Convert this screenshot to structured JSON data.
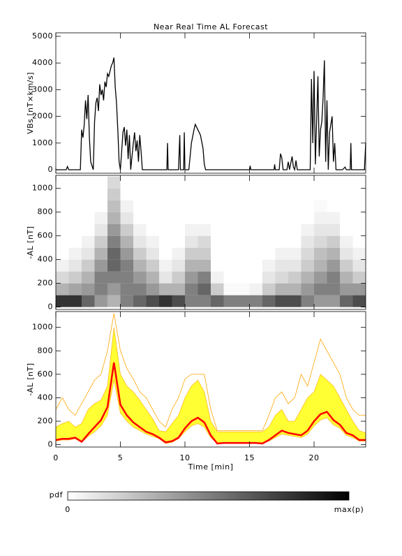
{
  "chart_data": [
    {
      "type": "line",
      "title": "Near Real Time AL Forecast",
      "ylabel": "VBs [nT×km/s]",
      "color": "#000000",
      "xlim": [
        0,
        24
      ],
      "ylim": [
        -130,
        5130
      ],
      "yticks": [
        0,
        1000,
        2000,
        3000,
        4000,
        5000
      ],
      "x": [
        0,
        0.8,
        0.9,
        1.0,
        1.9,
        2.0,
        2.1,
        2.2,
        2.3,
        2.4,
        2.5,
        2.6,
        2.7,
        2.9,
        3.0,
        3.1,
        3.2,
        3.3,
        3.4,
        3.5,
        3.6,
        3.7,
        3.8,
        3.9,
        4.0,
        4.1,
        4.2,
        4.3,
        4.4,
        4.5,
        4.6,
        4.7,
        4.8,
        4.9,
        5.0,
        5.2,
        5.3,
        5.4,
        5.5,
        5.6,
        5.7,
        5.8,
        6.0,
        6.1,
        6.2,
        6.3,
        6.4,
        6.5,
        6.6,
        6.7,
        8.6,
        8.65,
        8.7,
        9.5,
        9.6,
        9.65,
        9.9,
        9.95,
        10.0,
        10.3,
        10.5,
        10.7,
        10.8,
        11.0,
        11.2,
        11.4,
        11.5,
        11.6,
        15.0,
        15.05,
        15.1,
        16.9,
        16.95,
        17.0,
        17.3,
        17.4,
        17.5,
        17.6,
        17.9,
        18.0,
        18.1,
        18.3,
        18.4,
        18.5,
        18.6,
        18.7,
        19.7,
        19.8,
        19.9,
        20.0,
        20.1,
        20.3,
        20.4,
        20.5,
        20.6,
        20.7,
        20.8,
        20.9,
        21.0,
        21.1,
        21.2,
        21.4,
        21.5,
        21.6,
        21.7,
        22.2,
        22.4,
        22.5,
        22.8,
        22.85,
        22.9,
        23.9,
        24.0
      ],
      "values": [
        0,
        0,
        120,
        0,
        0,
        1500,
        1200,
        1700,
        2600,
        1900,
        2800,
        1200,
        300,
        0,
        1800,
        2500,
        2700,
        2200,
        3200,
        2800,
        3000,
        2600,
        3300,
        3100,
        3600,
        3500,
        3700,
        3900,
        4000,
        4200,
        3100,
        2500,
        1500,
        300,
        0,
        1400,
        1600,
        900,
        1500,
        400,
        1300,
        0,
        1000,
        1400,
        700,
        1100,
        300,
        1300,
        700,
        0,
        0,
        1000,
        0,
        0,
        1300,
        0,
        0,
        1400,
        0,
        0,
        1000,
        1500,
        1700,
        1500,
        1300,
        800,
        200,
        0,
        0,
        150,
        0,
        0,
        200,
        0,
        0,
        600,
        450,
        0,
        0,
        300,
        0,
        500,
        100,
        0,
        350,
        0,
        0,
        3400,
        1000,
        3700,
        200,
        3500,
        500,
        1500,
        1800,
        2700,
        4100,
        300,
        2600,
        0,
        1400,
        2000,
        300,
        1000,
        0,
        0,
        100,
        0,
        0,
        1000,
        0,
        0,
        1000
      ]
    },
    {
      "type": "heatmap",
      "ylabel": "-AL [nT]",
      "xlim": [
        0,
        24
      ],
      "ylim": [
        -20,
        1110
      ],
      "yticks": [
        0,
        200,
        400,
        600,
        800,
        1000
      ],
      "xbins": [
        0,
        1,
        2,
        3,
        4,
        5,
        6,
        7,
        8,
        9,
        10,
        11,
        12,
        13,
        14,
        15,
        16,
        17,
        18,
        19,
        20,
        21,
        22,
        23,
        24
      ],
      "ybins": [
        0,
        100,
        200,
        300,
        400,
        500,
        600,
        700,
        800,
        900,
        1000,
        1100
      ],
      "z": [
        [
          0.8,
          0.3,
          0.15,
          0.05,
          0,
          0,
          0,
          0,
          0,
          0,
          0
        ],
        [
          0.8,
          0.35,
          0.2,
          0.1,
          0.05,
          0,
          0,
          0,
          0,
          0,
          0
        ],
        [
          0.6,
          0.4,
          0.3,
          0.2,
          0.1,
          0.05,
          0,
          0,
          0,
          0,
          0
        ],
        [
          0.4,
          0.5,
          0.5,
          0.4,
          0.3,
          0.2,
          0.1,
          0.05,
          0,
          0,
          0
        ],
        [
          0.3,
          0.4,
          0.5,
          0.6,
          0.6,
          0.5,
          0.4,
          0.3,
          0.25,
          0.2,
          0.15
        ],
        [
          0.5,
          0.5,
          0.5,
          0.5,
          0.4,
          0.3,
          0.2,
          0.1,
          0.05,
          0,
          0
        ],
        [
          0.6,
          0.5,
          0.4,
          0.3,
          0.2,
          0.1,
          0.05,
          0,
          0,
          0,
          0
        ],
        [
          0.7,
          0.4,
          0.3,
          0.2,
          0.1,
          0.05,
          0,
          0,
          0,
          0,
          0
        ],
        [
          0.8,
          0.3,
          0.1,
          0.05,
          0,
          0,
          0,
          0,
          0,
          0,
          0
        ],
        [
          0.7,
          0.3,
          0.2,
          0.1,
          0.05,
          0,
          0,
          0,
          0,
          0,
          0
        ],
        [
          0.5,
          0.5,
          0.4,
          0.3,
          0.2,
          0.1,
          0.05,
          0,
          0,
          0,
          0
        ],
        [
          0.5,
          0.6,
          0.5,
          0.3,
          0.2,
          0.15,
          0.05,
          0,
          0,
          0,
          0
        ],
        [
          0.6,
          0.2,
          0.05,
          0,
          0,
          0,
          0,
          0,
          0,
          0,
          0
        ],
        [
          0.5,
          0.02,
          0,
          0,
          0,
          0,
          0,
          0,
          0,
          0,
          0
        ],
        [
          0.5,
          0.02,
          0,
          0,
          0,
          0,
          0,
          0,
          0,
          0,
          0
        ],
        [
          0.5,
          0.05,
          0,
          0,
          0,
          0,
          0,
          0,
          0,
          0,
          0
        ],
        [
          0.6,
          0.2,
          0.1,
          0.05,
          0,
          0,
          0,
          0,
          0,
          0,
          0
        ],
        [
          0.7,
          0.3,
          0.15,
          0.1,
          0.05,
          0,
          0,
          0,
          0,
          0,
          0
        ],
        [
          0.7,
          0.3,
          0.2,
          0.1,
          0.05,
          0,
          0,
          0,
          0,
          0,
          0
        ],
        [
          0.5,
          0.4,
          0.3,
          0.2,
          0.15,
          0.1,
          0.05,
          0,
          0,
          0,
          0
        ],
        [
          0.4,
          0.5,
          0.4,
          0.3,
          0.25,
          0.15,
          0.1,
          0.05,
          0.02,
          0,
          0
        ],
        [
          0.4,
          0.5,
          0.5,
          0.4,
          0.3,
          0.2,
          0.1,
          0.05,
          0,
          0,
          0
        ],
        [
          0.6,
          0.4,
          0.3,
          0.2,
          0.1,
          0.05,
          0,
          0,
          0,
          0,
          0
        ],
        [
          0.7,
          0.4,
          0.2,
          0.1,
          0.05,
          0,
          0,
          0,
          0,
          0,
          0
        ]
      ]
    },
    {
      "type": "area",
      "ylabel": "-AL [nT]",
      "xlabel": "Time [min]",
      "xlim": [
        0,
        24
      ],
      "ylim": [
        -20,
        1135
      ],
      "xticks": [
        0,
        5,
        10,
        15,
        20
      ],
      "yticks": [
        0,
        200,
        400,
        600,
        800,
        1000
      ],
      "x": [
        0,
        0.5,
        1,
        1.5,
        2,
        2.5,
        3,
        3.5,
        4,
        4.5,
        5,
        5.5,
        6,
        6.5,
        7,
        7.5,
        8,
        8.5,
        9,
        9.5,
        10,
        10.5,
        11,
        11.5,
        12,
        12.5,
        13,
        13.5,
        14,
        14.5,
        15,
        15.5,
        16,
        16.5,
        17,
        17.5,
        18,
        18.5,
        19,
        19.5,
        20,
        20.5,
        21,
        21.5,
        22,
        22.5,
        23,
        23.5,
        24
      ],
      "band": {
        "color": "#ffff33",
        "lower": [
          30,
          40,
          40,
          50,
          20,
          70,
          110,
          160,
          250,
          550,
          270,
          200,
          150,
          120,
          90,
          70,
          50,
          10,
          20,
          50,
          110,
          160,
          180,
          150,
          60,
          10,
          10,
          10,
          10,
          10,
          10,
          10,
          10,
          30,
          60,
          90,
          80,
          70,
          60,
          90,
          160,
          210,
          230,
          170,
          140,
          80,
          60,
          30,
          30
        ],
        "upper": [
          150,
          180,
          200,
          150,
          180,
          300,
          350,
          380,
          500,
          1000,
          600,
          500,
          450,
          380,
          300,
          220,
          120,
          110,
          180,
          250,
          400,
          500,
          550,
          450,
          200,
          110,
          110,
          110,
          110,
          110,
          110,
          110,
          110,
          150,
          250,
          300,
          200,
          200,
          300,
          400,
          450,
          600,
          550,
          500,
          400,
          300,
          200,
          120,
          100
        ]
      },
      "envelope": {
        "color": "#ffa500",
        "values": [
          300,
          400,
          300,
          250,
          350,
          450,
          550,
          600,
          800,
          1120,
          800,
          650,
          560,
          450,
          400,
          300,
          200,
          150,
          300,
          400,
          560,
          600,
          600,
          600,
          300,
          120,
          120,
          120,
          120,
          120,
          120,
          120,
          120,
          250,
          400,
          450,
          350,
          400,
          600,
          500,
          700,
          900,
          800,
          700,
          600,
          400,
          300,
          250,
          250
        ]
      },
      "median": {
        "color": "#ff0000",
        "values": [
          40,
          50,
          50,
          60,
          25,
          90,
          150,
          210,
          320,
          700,
          340,
          250,
          190,
          150,
          110,
          90,
          60,
          20,
          30,
          60,
          140,
          200,
          230,
          190,
          80,
          10,
          15,
          15,
          15,
          15,
          15,
          15,
          10,
          40,
          80,
          120,
          100,
          90,
          80,
          120,
          200,
          260,
          280,
          210,
          170,
          100,
          80,
          40,
          40
        ]
      }
    }
  ],
  "colorbar": {
    "label": "pdf",
    "min_label": "0",
    "max_label": "max(p)"
  }
}
